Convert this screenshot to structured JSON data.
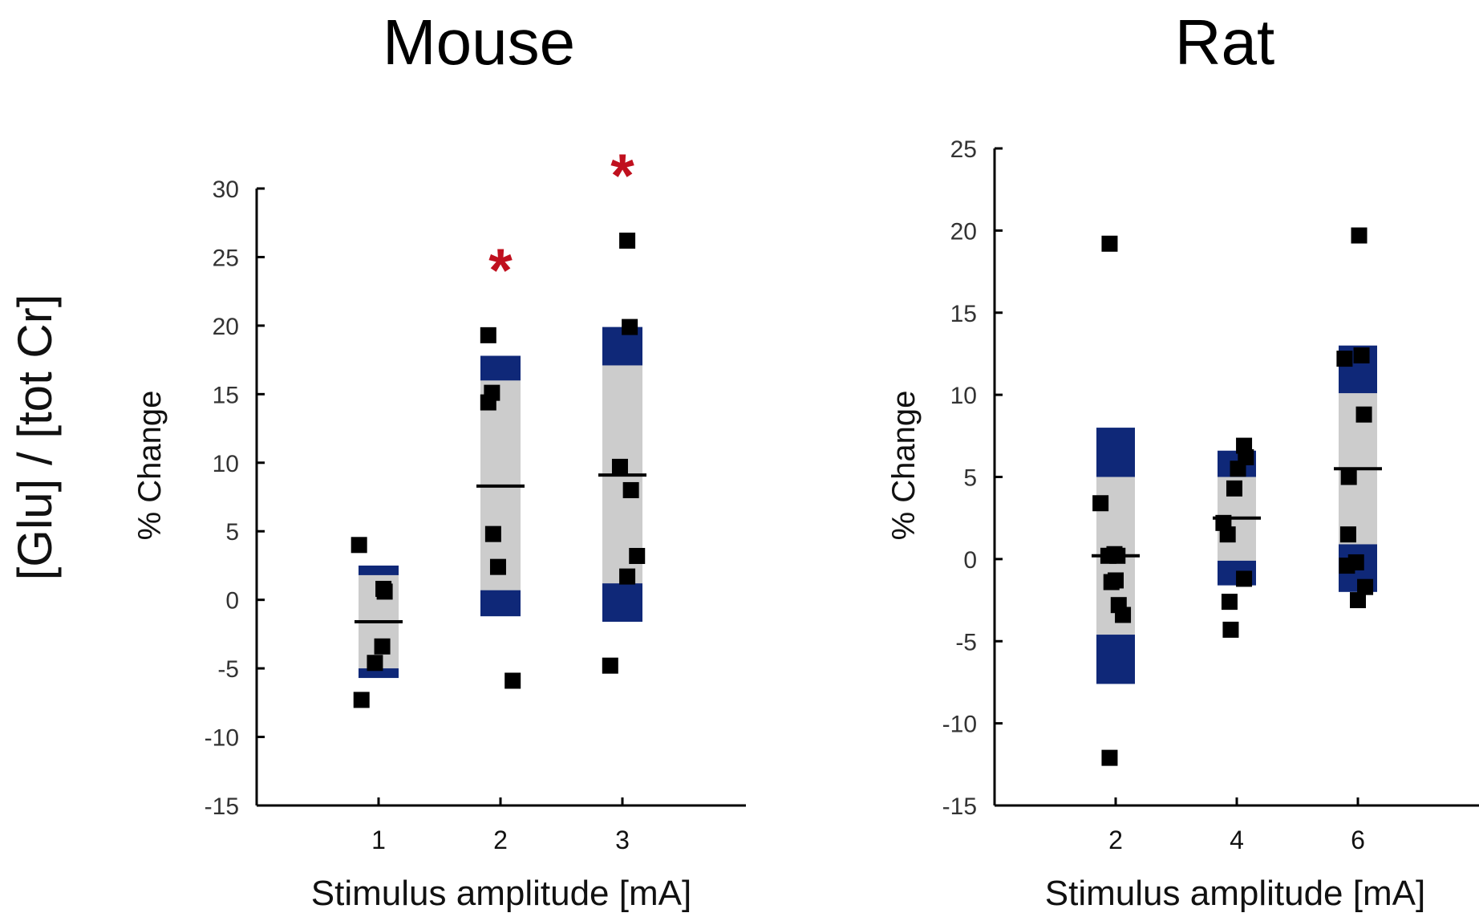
{
  "figure": {
    "shared_ylabel": "[Glu] / [tot Cr]"
  },
  "colors": {
    "box_gray": "#cccccc",
    "tail_blue": "#0f2878",
    "point": "#000000",
    "axis": "#000000",
    "significance": "#c0101e"
  },
  "chart_data": [
    {
      "type": "scatter",
      "title": "Mouse",
      "xlabel": "Stimulus amplitude [mA]",
      "ylabel": "% Change",
      "xlim": [
        0,
        4
      ],
      "ylim": [
        -15,
        30
      ],
      "yticks": [
        -15,
        -10,
        -5,
        0,
        5,
        10,
        15,
        20,
        25,
        30
      ],
      "ytick_labels": [
        "-15",
        "-10",
        "-5",
        "0",
        "5",
        "10",
        "15",
        "20",
        "25",
        "30"
      ],
      "xticks": [
        1,
        2,
        3
      ],
      "xtick_labels": [
        "1",
        "2",
        "3"
      ],
      "groups": [
        {
          "x": 1,
          "label": "1",
          "mean": -1.6,
          "outer_range": [
            -5.7,
            2.5
          ],
          "inner_range": [
            -5.0,
            1.8
          ],
          "points": [
            [
              0.84,
              4.0
            ],
            [
              0.86,
              -7.3
            ],
            [
              0.97,
              -4.6
            ],
            [
              1.03,
              -3.4
            ],
            [
              1.04,
              0.8
            ],
            [
              1.05,
              0.6
            ]
          ],
          "significant": false
        },
        {
          "x": 2,
          "label": "2",
          "mean": 8.3,
          "outer_range": [
            -1.2,
            17.8
          ],
          "inner_range": [
            0.7,
            16.0
          ],
          "points": [
            [
              1.9,
              19.3
            ],
            [
              1.9,
              14.4
            ],
            [
              1.93,
              15.1
            ],
            [
              1.94,
              4.8
            ],
            [
              1.98,
              2.4
            ],
            [
              2.1,
              -5.9
            ]
          ],
          "significant": true,
          "star_label": "*"
        },
        {
          "x": 3,
          "label": "3",
          "mean": 9.1,
          "outer_range": [
            -1.6,
            19.9
          ],
          "inner_range": [
            1.2,
            17.1
          ],
          "points": [
            [
              2.9,
              -4.8
            ],
            [
              2.98,
              9.7
            ],
            [
              3.04,
              26.2
            ],
            [
              3.06,
              19.9
            ],
            [
              3.07,
              8.0
            ],
            [
              3.04,
              1.7
            ],
            [
              3.12,
              3.2
            ]
          ],
          "significant": true,
          "star_label": "*"
        }
      ]
    },
    {
      "type": "scatter",
      "title": "Rat",
      "xlabel": "Stimulus amplitude [mA]",
      "ylabel": "% Change",
      "xlim": [
        0,
        8
      ],
      "ylim": [
        -15,
        25
      ],
      "yticks": [
        -15,
        -10,
        -5,
        0,
        5,
        10,
        15,
        20,
        25
      ],
      "ytick_labels": [
        "-15",
        "-10",
        "-5",
        "0",
        "5",
        "10",
        "15",
        "20",
        "25"
      ],
      "xticks": [
        2,
        4,
        6
      ],
      "xtick_labels": [
        "2",
        "4",
        "6"
      ],
      "groups": [
        {
          "x": 2,
          "label": "2",
          "mean": 0.2,
          "outer_range": [
            -7.6,
            8.0
          ],
          "inner_range": [
            -4.6,
            5.0
          ],
          "points": [
            [
              1.75,
              3.4
            ],
            [
              1.9,
              19.2
            ],
            [
              1.9,
              -12.1
            ],
            [
              1.88,
              0.2
            ],
            [
              1.93,
              -1.4
            ],
            [
              1.98,
              0.3
            ],
            [
              2.03,
              0.2
            ],
            [
              2.0,
              -1.3
            ],
            [
              2.05,
              -2.8
            ],
            [
              2.12,
              -3.4
            ]
          ],
          "significant": false
        },
        {
          "x": 4,
          "label": "4",
          "mean": 2.5,
          "outer_range": [
            -1.6,
            6.6
          ],
          "inner_range": [
            -0.1,
            5.0
          ],
          "points": [
            [
              3.78,
              2.2
            ],
            [
              3.85,
              1.5
            ],
            [
              3.88,
              -2.6
            ],
            [
              3.9,
              -4.3
            ],
            [
              3.96,
              4.3
            ],
            [
              4.02,
              5.5
            ],
            [
              4.12,
              6.9
            ],
            [
              4.15,
              6.2
            ],
            [
              4.12,
              -1.2
            ]
          ],
          "significant": false
        },
        {
          "x": 6,
          "label": "6",
          "mean": 5.5,
          "outer_range": [
            -2.0,
            13.0
          ],
          "inner_range": [
            0.9,
            10.1
          ],
          "points": [
            [
              5.78,
              12.2
            ],
            [
              5.85,
              5.0
            ],
            [
              5.84,
              1.5
            ],
            [
              5.82,
              -0.4
            ],
            [
              5.97,
              -0.2
            ],
            [
              6.02,
              19.7
            ],
            [
              6.0,
              -2.5
            ],
            [
              6.06,
              12.4
            ],
            [
              6.1,
              8.8
            ],
            [
              6.12,
              -1.7
            ]
          ],
          "significant": false
        }
      ]
    }
  ]
}
